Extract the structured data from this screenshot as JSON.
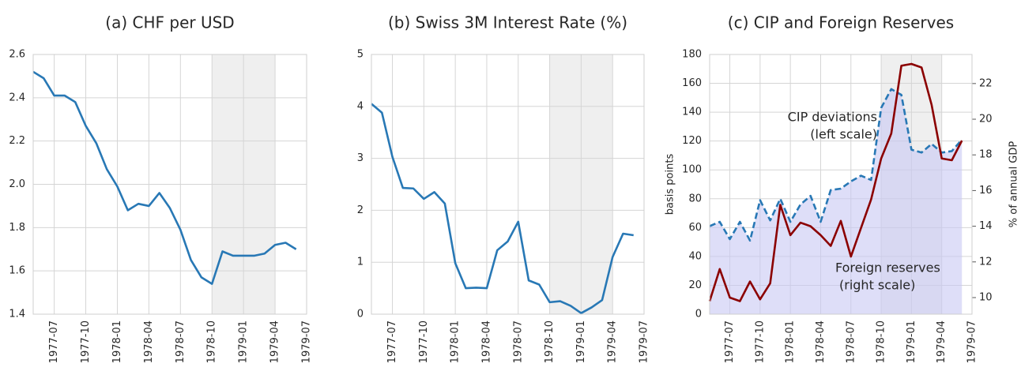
{
  "chart_data": [
    {
      "type": "line",
      "title": "(a) CHF per USD",
      "x": [
        "1977-05",
        "1977-06",
        "1977-07",
        "1977-08",
        "1977-09",
        "1977-10",
        "1977-11",
        "1977-12",
        "1978-01",
        "1978-02",
        "1978-03",
        "1978-04",
        "1978-05",
        "1978-06",
        "1978-07",
        "1978-08",
        "1978-09",
        "1978-10",
        "1978-11",
        "1978-12",
        "1979-01",
        "1979-02",
        "1979-03",
        "1979-04",
        "1979-05",
        "1979-06"
      ],
      "values": [
        2.52,
        2.49,
        2.41,
        2.41,
        2.38,
        2.27,
        2.19,
        2.07,
        1.99,
        1.88,
        1.91,
        1.9,
        1.96,
        1.89,
        1.79,
        1.65,
        1.57,
        1.54,
        1.69,
        1.67,
        1.67,
        1.67,
        1.68,
        1.72,
        1.73,
        1.7
      ],
      "color": "#2878b5",
      "xlim": [
        "1977-05",
        "1979-07"
      ],
      "xticks": [
        "1977-07",
        "1977-10",
        "1978-01",
        "1978-04",
        "1978-07",
        "1978-10",
        "1979-01",
        "1979-04",
        "1979-07"
      ],
      "ylim": [
        1.4,
        2.6
      ],
      "yticks": [
        1.4,
        1.6,
        1.8,
        {
          "value": 2,
          "label": "2.0"
        },
        2.2,
        2.4,
        2.6
      ],
      "shade": [
        "1978-10",
        "1979-04"
      ],
      "grid": true
    },
    {
      "type": "line",
      "title": "(b) Swiss 3M Interest Rate (%)",
      "x": [
        "1977-05",
        "1977-06",
        "1977-07",
        "1977-08",
        "1977-09",
        "1977-10",
        "1977-11",
        "1977-12",
        "1978-01",
        "1978-02",
        "1978-03",
        "1978-04",
        "1978-05",
        "1978-06",
        "1978-07",
        "1978-08",
        "1978-09",
        "1978-10",
        "1978-11",
        "1978-12",
        "1979-01",
        "1979-02",
        "1979-03",
        "1979-04",
        "1979-05",
        "1979-06"
      ],
      "values": [
        4.05,
        3.88,
        3.03,
        2.43,
        2.42,
        2.22,
        2.35,
        2.13,
        0.98,
        0.5,
        0.51,
        0.5,
        1.23,
        1.4,
        1.78,
        0.65,
        0.57,
        0.23,
        0.25,
        0.16,
        0.02,
        0.13,
        0.27,
        1.1,
        1.55,
        1.52
      ],
      "color": "#2878b5",
      "xlim": [
        "1977-05",
        "1979-07"
      ],
      "xticks": [
        "1977-07",
        "1977-10",
        "1978-01",
        "1978-04",
        "1978-07",
        "1978-10",
        "1979-01",
        "1979-04",
        "1979-07"
      ],
      "ylim": [
        0,
        5
      ],
      "yticks": [
        0,
        1,
        2,
        3,
        4,
        5
      ],
      "shade": [
        "1978-10",
        "1979-04"
      ],
      "grid": true
    },
    {
      "type": "line",
      "title": "(c) CIP and Foreign Reserves",
      "x": [
        "1977-05",
        "1977-06",
        "1977-07",
        "1977-08",
        "1977-09",
        "1977-10",
        "1977-11",
        "1977-12",
        "1978-01",
        "1978-02",
        "1978-03",
        "1978-04",
        "1978-05",
        "1978-06",
        "1978-07",
        "1978-08",
        "1978-09",
        "1978-10",
        "1978-11",
        "1978-12",
        "1979-01",
        "1979-02",
        "1979-03",
        "1979-04",
        "1979-05",
        "1979-06"
      ],
      "series": [
        {
          "color": "#2878b5",
          "style": "dashed",
          "fill": "#c8c8f4",
          "values": [
            61,
            64,
            52,
            64,
            51,
            79,
            65,
            80,
            64,
            76,
            82,
            64,
            86,
            87,
            92,
            96,
            93,
            143,
            156,
            152,
            114,
            112,
            118,
            112,
            113,
            121
          ]
        },
        {
          "color": "#8b0000",
          "axis": "y2",
          "values": [
            9.8,
            11.6,
            10.0,
            9.8,
            10.9,
            9.9,
            10.8,
            15.2,
            13.5,
            14.2,
            14.0,
            13.5,
            12.9,
            14.3,
            12.3,
            13.9,
            15.5,
            17.8,
            19.2,
            23.0,
            23.1,
            22.9,
            20.8,
            17.8,
            17.7,
            18.8
          ]
        }
      ],
      "xlim": [
        "1977-05",
        "1979-07"
      ],
      "xticks": [
        "1977-07",
        "1977-10",
        "1978-01",
        "1978-04",
        "1978-07",
        "1978-10",
        "1979-01",
        "1979-04",
        "1979-07"
      ],
      "ylim": [
        0,
        180
      ],
      "yticks": [
        0,
        20,
        40,
        60,
        80,
        100,
        120,
        140,
        160,
        180
      ],
      "y2lim": [
        9.07,
        23.63
      ],
      "y2ticks": [
        10,
        12,
        14,
        16,
        18,
        20,
        22
      ],
      "ylabel": "basis points",
      "y2label": "% of annual GDP",
      "annotations": [
        [
          "CIP deviations",
          "(left scale)"
        ],
        [
          "Foreign reserves",
          "(right scale)"
        ]
      ],
      "shade": [
        "1978-10",
        "1979-04"
      ],
      "grid": true
    }
  ]
}
